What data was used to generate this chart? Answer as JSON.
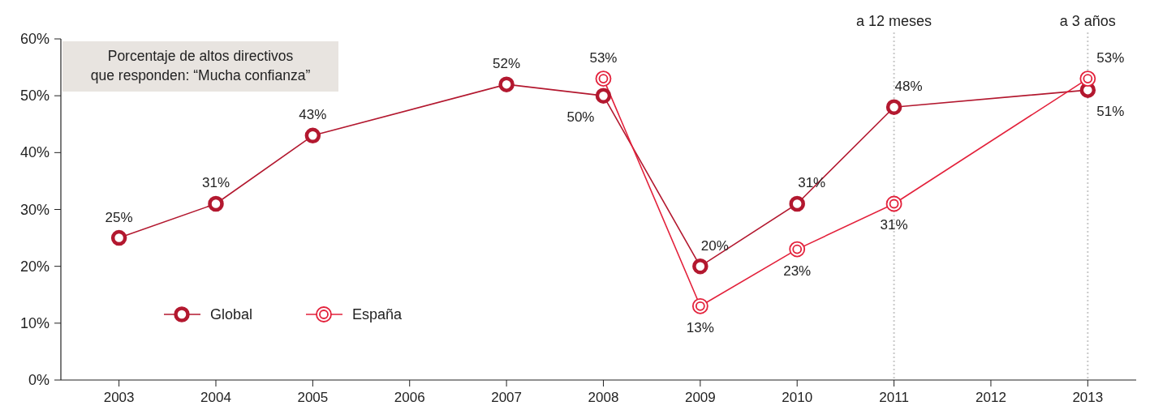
{
  "chart_data": {
    "type": "line",
    "series": [
      {
        "name": "Global",
        "color": "#b3182f",
        "x": [
          2003,
          2004,
          2005,
          2007,
          2008,
          2009,
          2010,
          2011,
          2013
        ],
        "values": [
          25,
          31,
          43,
          52,
          50,
          20,
          31,
          48,
          51
        ],
        "value_labels": [
          "25%",
          "31%",
          "43%",
          "52%",
          "50%",
          "20%",
          "31%",
          "48%",
          "51%"
        ]
      },
      {
        "name": "España",
        "color": "#e3213b",
        "x": [
          2008,
          2009,
          2010,
          2011,
          2013
        ],
        "values": [
          53,
          13,
          23,
          31,
          53
        ],
        "value_labels": [
          "53%",
          "13%",
          "23%",
          "31%",
          "53%"
        ]
      }
    ],
    "xlim": [
      2002.4,
      2013.5
    ],
    "xticks": [
      2003,
      2004,
      2005,
      2006,
      2007,
      2008,
      2009,
      2010,
      2011,
      2012,
      2013
    ],
    "ylim": [
      0,
      60
    ],
    "yticks": [
      {
        "value": 0,
        "label": "0%"
      },
      {
        "value": 10,
        "label": "10%"
      },
      {
        "value": 20,
        "label": "20%"
      },
      {
        "value": 30,
        "label": "30%"
      },
      {
        "value": 40,
        "label": "40%"
      },
      {
        "value": 50,
        "label": "50%"
      },
      {
        "value": 60,
        "label": "60%"
      }
    ],
    "ref_lines": [
      {
        "axis": "x",
        "value": 2011,
        "label": "a 12 meses",
        "color": "#c8c8c8",
        "line_style": "dotted"
      },
      {
        "axis": "x",
        "value": 2013,
        "label": "a 3 años",
        "color": "#c8c8c8",
        "line_style": "dotted"
      }
    ],
    "annotations": [
      "Porcentaje de altos directivos\nque responden: “Mucha confianza”"
    ],
    "marker": "circle",
    "line_style": "solid",
    "legend": "bottom left"
  }
}
